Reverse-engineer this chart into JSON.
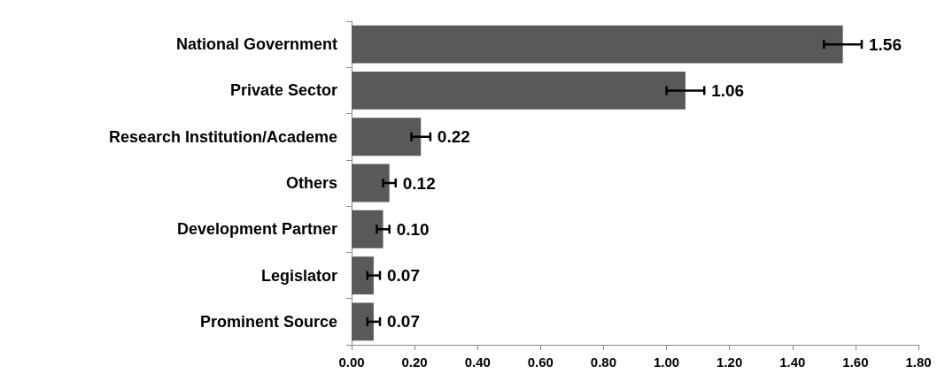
{
  "chart_data": {
    "type": "bar",
    "orientation": "horizontal",
    "categories": [
      "National Government",
      "Private Sector",
      "Research Institution/Academe",
      "Others",
      "Development Partner",
      "Legislator",
      "Prominent Source"
    ],
    "values": [
      1.56,
      1.06,
      0.22,
      0.12,
      0.1,
      0.07,
      0.07
    ],
    "value_labels": [
      "1.56",
      "1.06",
      "0.22",
      "0.12",
      "0.10",
      "0.07",
      "0.07"
    ],
    "errors": [
      0.06,
      0.06,
      0.03,
      0.02,
      0.02,
      0.02,
      0.02
    ],
    "color": "#595959",
    "xlim": [
      0,
      1.8
    ],
    "xticks": [
      {
        "value": 0,
        "label": "0.00"
      },
      {
        "value": 0.2,
        "label": "0.20"
      },
      {
        "value": 0.4,
        "label": "0.40"
      },
      {
        "value": 0.6,
        "label": "0.60"
      },
      {
        "value": 0.8,
        "label": "0.80"
      },
      {
        "value": 1,
        "label": "1.00"
      },
      {
        "value": 1.2,
        "label": "1.20"
      },
      {
        "value": 1.4,
        "label": "1.40"
      },
      {
        "value": 1.6,
        "label": "1.60"
      },
      {
        "value": 1.8,
        "label": "1.80"
      }
    ],
    "grid": false
  }
}
